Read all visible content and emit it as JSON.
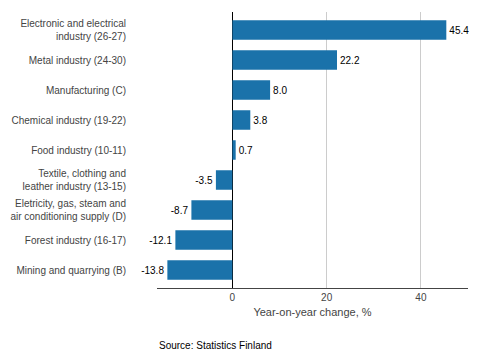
{
  "chart_data": {
    "type": "bar",
    "orientation": "horizontal",
    "categories": [
      "Mining and quarrying (B)",
      "Forest industry (16-17)",
      "Eletricity, gas, steam and\nair conditioning supply (D)",
      "Textile, clothing and\nleather industry (13-15)",
      "Food industry (10-11)",
      "Chemical industry (19-22)",
      "Manufacturing (C)",
      "Metal industry (24-30)",
      "Electronic and electrical\nindustry (26-27)"
    ],
    "values": [
      -13.8,
      -12.1,
      -8.7,
      -3.5,
      0.7,
      3.8,
      8.0,
      22.2,
      45.4
    ],
    "value_labels": [
      "-13.8",
      "-12.1",
      "-8.7",
      "-3.5",
      "0.7",
      "3.8",
      "8.0",
      "22.2",
      "45.4"
    ],
    "data_labels": true,
    "color": "#1a72aa",
    "xlabel": "Year-on-year change, %",
    "annotations": [
      "Source: Statistics Finland"
    ],
    "xlim": [
      -16,
      50
    ],
    "xticks": [
      0,
      20,
      40
    ],
    "grid": true
  }
}
